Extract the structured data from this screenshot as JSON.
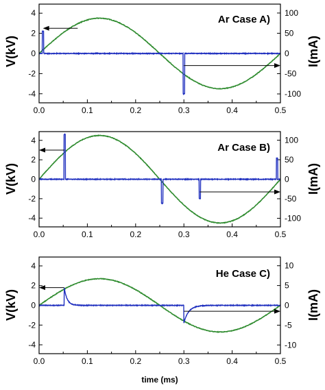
{
  "colors": {
    "voltage": "#2e8b2e",
    "current": "#1f2fbf",
    "frame": "#000000",
    "arrow": "#000000"
  },
  "chart_data": [
    {
      "type": "line",
      "title": "Ar Case A)",
      "xlabel": "",
      "ylabel_left": "V(kV)",
      "ylabel_right": "I(mA)",
      "xlim": [
        0.0,
        0.5
      ],
      "ylim_left": [
        -4.9,
        4.9
      ],
      "ylim_right": [
        -122,
        122
      ],
      "x_ticks": [
        "0.0",
        "0.1",
        "0.2",
        "0.3",
        "0.4",
        "0.5"
      ],
      "y_left_ticks": [
        "-4",
        "-2",
        "0",
        "2",
        "4"
      ],
      "y_right_ticks": [
        "-100",
        "-50",
        "0",
        "50",
        "100"
      ],
      "series": [
        {
          "axis": "left",
          "kind": "sine",
          "amplitude_kv": 3.5,
          "period_ms": 0.5,
          "phase_ms": 0.0
        },
        {
          "axis": "right",
          "kind": "pulses",
          "baseline_ma": 0,
          "pulses": [
            {
              "t_ms": 0.008,
              "peak_ma": 55,
              "width_ms": 0.003
            },
            {
              "t_ms": 0.3,
              "peak_ma": -100,
              "width_ms": 0.003
            }
          ]
        }
      ],
      "arrows": [
        {
          "from_x": 0.08,
          "at_y": 2.5,
          "to_x": 0.008,
          "axis": "left"
        },
        {
          "from_x": 0.3,
          "at_y": -1.2,
          "to_x": 0.5,
          "axis": "left"
        }
      ]
    },
    {
      "type": "line",
      "title": "Ar Case B)",
      "xlabel": "",
      "ylabel_left": "V(kV)",
      "ylabel_right": "I(mA)",
      "xlim": [
        0.0,
        0.5
      ],
      "ylim_left": [
        -4.9,
        4.9
      ],
      "ylim_right": [
        -122,
        122
      ],
      "x_ticks": [
        "0.0",
        "0.1",
        "0.2",
        "0.3",
        "0.4",
        "0.5"
      ],
      "y_left_ticks": [
        "-4",
        "-2",
        "0",
        "2",
        "4"
      ],
      "y_right_ticks": [
        "-100",
        "-50",
        "0",
        "50",
        "100"
      ],
      "series": [
        {
          "axis": "left",
          "kind": "sine",
          "amplitude_kv": 4.5,
          "period_ms": 0.5,
          "phase_ms": 0.0
        },
        {
          "axis": "right",
          "kind": "pulses",
          "baseline_ma": 0,
          "pulses": [
            {
              "t_ms": 0.053,
              "peak_ma": 115,
              "width_ms": 0.003
            },
            {
              "t_ms": 0.255,
              "peak_ma": -62,
              "width_ms": 0.003
            },
            {
              "t_ms": 0.333,
              "peak_ma": -50,
              "width_ms": 0.003
            },
            {
              "t_ms": 0.493,
              "peak_ma": 54,
              "width_ms": 0.003
            }
          ]
        }
      ],
      "arrows": [
        {
          "from_x": 0.053,
          "at_y": 3.0,
          "to_x": 0.0,
          "axis": "left"
        },
        {
          "from_x": 0.333,
          "at_y": -1.3,
          "to_x": 0.5,
          "axis": "left"
        }
      ]
    },
    {
      "type": "line",
      "title": "He Case C)",
      "xlabel": "time (ms)",
      "ylabel_left": "V(kV)",
      "ylabel_right": "I(mA)",
      "xlim": [
        0.0,
        0.5
      ],
      "ylim_left": [
        -4.9,
        4.9
      ],
      "ylim_right": [
        -12.2,
        12.2
      ],
      "x_ticks": [
        "0.0",
        "0.1",
        "0.2",
        "0.3",
        "0.4",
        "0.5"
      ],
      "y_left_ticks": [
        "-4",
        "-2",
        "0",
        "2",
        "4"
      ],
      "y_right_ticks": [
        "-10",
        "-5",
        "0",
        "5",
        "10"
      ],
      "series": [
        {
          "axis": "left",
          "kind": "sine",
          "amplitude_kv": 2.7,
          "period_ms": 0.5,
          "phase_ms": 0.0
        },
        {
          "axis": "right",
          "kind": "pulses",
          "baseline_ma": 0,
          "pulses": [
            {
              "t_ms": 0.052,
              "peak_ma": 4.6,
              "width_ms": 0.006
            },
            {
              "t_ms": 0.3,
              "peak_ma": -4.4,
              "width_ms": 0.01
            }
          ]
        }
      ],
      "arrows": [
        {
          "from_x": 0.052,
          "at_y": 1.8,
          "to_x": 0.0,
          "axis": "left"
        },
        {
          "from_x": 0.3,
          "at_y": -0.6,
          "to_x": 0.5,
          "axis": "left"
        }
      ]
    }
  ]
}
